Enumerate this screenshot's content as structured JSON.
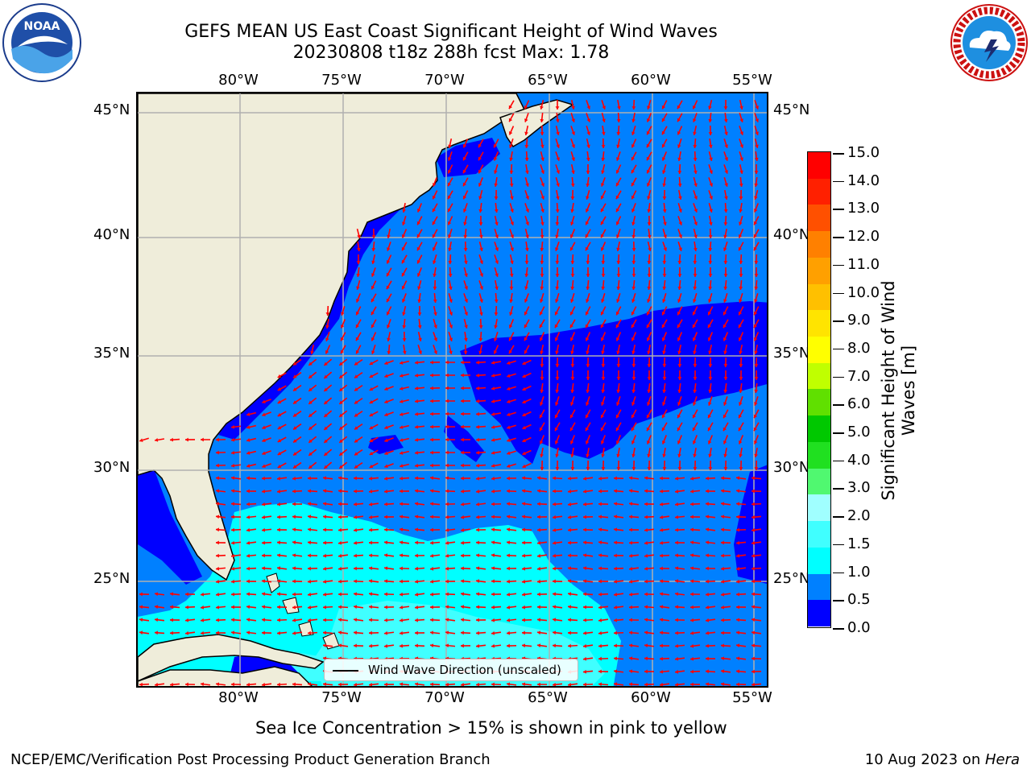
{
  "header": {
    "title_line1": "GEFS MEAN US East Coast Significant Height of Wind Waves",
    "title_line2": "20230808 t18z 288h fcst   Max: 1.78"
  },
  "logos": {
    "left": {
      "name": "noaa-logo",
      "text": "NOAA",
      "ring_text": "NATIONAL OCEANIC AND ATMOSPHERIC ADMINISTRATION · U.S. DEPARTMENT OF COMMERCE"
    },
    "right": {
      "name": "nws-logo",
      "ring_text": "NATIONAL WEATHER SERVICE"
    }
  },
  "map": {
    "lon_labels": [
      "80°W",
      "75°W",
      "70°W",
      "65°W",
      "60°W",
      "55°W"
    ],
    "lat_labels": [
      "45°N",
      "40°N",
      "35°N",
      "30°N",
      "25°N"
    ],
    "lon_range": [
      -85,
      -54
    ],
    "lat_range": [
      20.5,
      46
    ],
    "land_color": "#efedda",
    "grid_color": "#b0b0b0",
    "arrow_color": "#ff0000"
  },
  "legend": {
    "label": "Wind Wave Direction (unscaled)"
  },
  "colorbar": {
    "title": "Significant Height of Wind Waves [m]",
    "tick_labels": [
      "0.0",
      "0.5",
      "1.0",
      "1.5",
      "2.0",
      "3.0",
      "4.0",
      "5.0",
      "6.0",
      "7.0",
      "8.0",
      "9.0",
      "10.0",
      "11.0",
      "12.0",
      "13.0",
      "14.0",
      "15.0"
    ],
    "colors": [
      "#0000ff",
      "#0080ff",
      "#00ffff",
      "#40ffff",
      "#a0ffff",
      "#50f870",
      "#20e020",
      "#00c800",
      "#60e000",
      "#c0ff00",
      "#ffff00",
      "#ffe400",
      "#ffc000",
      "#ffa000",
      "#ff8000",
      "#ff5000",
      "#ff2000",
      "#ff0000"
    ]
  },
  "notes": {
    "sea_ice": "Sea Ice Concentration > 15% is shown in pink to yellow",
    "footer_left": "NCEP/EMC/Verification Post Processing Product Generation Branch",
    "footer_right_prefix": "10 Aug 2023 on ",
    "footer_right_host": "Hera"
  }
}
